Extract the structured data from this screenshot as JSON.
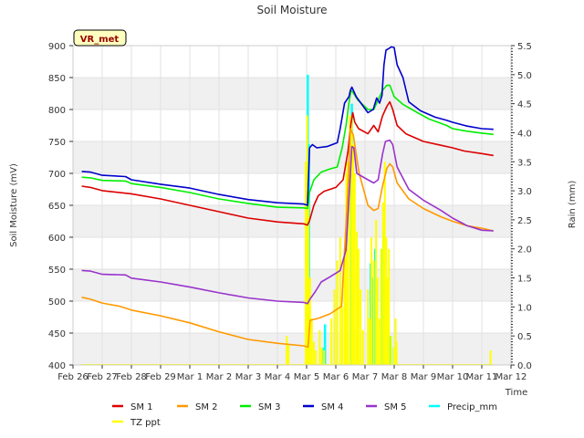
{
  "chart_data": {
    "type": "line",
    "title": "Soil Moisture",
    "xlabel": "Time",
    "ylabel": "Soil Moisture (mV)",
    "y2label": "Rain (mm)",
    "badge": "VR_met",
    "xlim": [
      0,
      15
    ],
    "ylim": [
      400,
      900
    ],
    "y2lim": [
      0.0,
      5.5
    ],
    "x_tick_labels": [
      "Feb 26",
      "Feb 27",
      "Feb 28",
      "Feb 29",
      "Mar 1",
      "Mar 2",
      "Mar 3",
      "Mar 4",
      "Mar 5",
      "Mar 6",
      "Mar 7",
      "Mar 8",
      "Mar 9",
      "Mar 10",
      "Mar 11",
      "Mar 12"
    ],
    "y_ticks": [
      400,
      450,
      500,
      550,
      600,
      650,
      700,
      750,
      800,
      850,
      900
    ],
    "y_tick_labels": [
      "400",
      "450",
      "500",
      "550",
      "600",
      "650",
      "700",
      "750",
      "800",
      "850",
      "900"
    ],
    "y2_ticks": [
      0.0,
      0.5,
      1.0,
      1.5,
      2.0,
      2.5,
      3.0,
      3.5,
      4.0,
      4.5,
      5.0,
      5.5
    ],
    "y2_tick_labels": [
      "0.0",
      "0.5",
      "1.0",
      "1.5",
      "2.0",
      "2.5",
      "3.0",
      "3.5",
      "4.0",
      "4.5",
      "5.0",
      "5.5"
    ],
    "series": [
      {
        "name": "SM 1",
        "color": "#dd0000",
        "axis": "left",
        "points": [
          [
            0.3,
            680
          ],
          [
            0.6,
            678
          ],
          [
            1,
            673
          ],
          [
            2,
            668
          ],
          [
            3,
            660
          ],
          [
            4,
            650
          ],
          [
            5,
            640
          ],
          [
            6,
            630
          ],
          [
            7,
            624
          ],
          [
            7.9,
            621
          ],
          [
            8.03,
            619
          ],
          [
            8.1,
            626
          ],
          [
            8.25,
            650
          ],
          [
            8.4,
            665
          ],
          [
            8.6,
            672
          ],
          [
            9,
            678
          ],
          [
            9.25,
            690
          ],
          [
            9.42,
            735
          ],
          [
            9.52,
            778
          ],
          [
            9.58,
            795
          ],
          [
            9.65,
            780
          ],
          [
            9.78,
            770
          ],
          [
            10.1,
            762
          ],
          [
            10.3,
            775
          ],
          [
            10.45,
            765
          ],
          [
            10.6,
            790
          ],
          [
            10.75,
            805
          ],
          [
            10.85,
            812
          ],
          [
            10.95,
            800
          ],
          [
            11.1,
            775
          ],
          [
            11.4,
            762
          ],
          [
            12,
            750
          ],
          [
            12.6,
            744
          ],
          [
            13,
            740
          ],
          [
            13.4,
            735
          ],
          [
            14,
            731
          ],
          [
            14.4,
            728
          ]
        ]
      },
      {
        "name": "SM 2",
        "color": "#ff9900",
        "axis": "left",
        "points": [
          [
            0.3,
            506
          ],
          [
            0.6,
            503
          ],
          [
            1,
            497
          ],
          [
            1.6,
            492
          ],
          [
            2,
            486
          ],
          [
            3,
            477
          ],
          [
            4,
            466
          ],
          [
            5,
            452
          ],
          [
            6,
            440
          ],
          [
            7,
            434
          ],
          [
            7.9,
            430
          ],
          [
            8.05,
            428
          ],
          [
            8.12,
            470
          ],
          [
            8.4,
            473
          ],
          [
            8.8,
            480
          ],
          [
            9.2,
            492
          ],
          [
            9.42,
            680
          ],
          [
            9.5,
            770
          ],
          [
            9.6,
            760
          ],
          [
            9.8,
            700
          ],
          [
            10.1,
            650
          ],
          [
            10.3,
            642
          ],
          [
            10.45,
            645
          ],
          [
            10.6,
            680
          ],
          [
            10.75,
            708
          ],
          [
            10.85,
            715
          ],
          [
            10.95,
            710
          ],
          [
            11.1,
            685
          ],
          [
            11.5,
            660
          ],
          [
            12,
            645
          ],
          [
            12.6,
            632
          ],
          [
            13,
            625
          ],
          [
            13.5,
            618
          ],
          [
            14,
            614
          ],
          [
            14.4,
            610
          ]
        ]
      },
      {
        "name": "SM 3",
        "color": "#00ee00",
        "axis": "left",
        "points": [
          [
            0.3,
            694
          ],
          [
            0.6,
            693
          ],
          [
            1,
            689
          ],
          [
            1.8,
            688
          ],
          [
            2,
            684
          ],
          [
            3,
            678
          ],
          [
            4,
            670
          ],
          [
            5,
            660
          ],
          [
            6,
            653
          ],
          [
            7,
            647
          ],
          [
            7.9,
            646
          ],
          [
            8.03,
            645
          ],
          [
            8.1,
            670
          ],
          [
            8.25,
            690
          ],
          [
            8.5,
            702
          ],
          [
            8.8,
            707
          ],
          [
            9.05,
            710
          ],
          [
            9.22,
            740
          ],
          [
            9.35,
            775
          ],
          [
            9.45,
            810
          ],
          [
            9.52,
            830
          ],
          [
            9.6,
            826
          ],
          [
            9.75,
            815
          ],
          [
            10.1,
            800
          ],
          [
            10.3,
            800
          ],
          [
            10.45,
            815
          ],
          [
            10.6,
            830
          ],
          [
            10.75,
            838
          ],
          [
            10.85,
            838
          ],
          [
            11,
            820
          ],
          [
            11.3,
            808
          ],
          [
            11.8,
            795
          ],
          [
            12.2,
            785
          ],
          [
            12.8,
            775
          ],
          [
            13,
            770
          ],
          [
            13.5,
            766
          ],
          [
            14,
            763
          ],
          [
            14.4,
            761
          ]
        ]
      },
      {
        "name": "SM 4",
        "color": "#0000cc",
        "axis": "left",
        "points": [
          [
            0.3,
            703
          ],
          [
            0.6,
            702
          ],
          [
            1,
            697
          ],
          [
            1.8,
            695
          ],
          [
            2,
            690
          ],
          [
            3,
            683
          ],
          [
            4,
            677
          ],
          [
            5,
            667
          ],
          [
            6,
            659
          ],
          [
            7,
            654
          ],
          [
            7.9,
            652
          ],
          [
            8.03,
            650
          ],
          [
            8.1,
            740
          ],
          [
            8.2,
            745
          ],
          [
            8.35,
            740
          ],
          [
            8.7,
            742
          ],
          [
            9.05,
            748
          ],
          [
            9.15,
            770
          ],
          [
            9.3,
            810
          ],
          [
            9.45,
            820
          ],
          [
            9.5,
            830
          ],
          [
            9.55,
            835
          ],
          [
            9.7,
            820
          ],
          [
            10.1,
            795
          ],
          [
            10.28,
            800
          ],
          [
            10.4,
            818
          ],
          [
            10.5,
            810
          ],
          [
            10.58,
            822
          ],
          [
            10.65,
            870
          ],
          [
            10.72,
            893
          ],
          [
            10.8,
            895
          ],
          [
            10.9,
            898
          ],
          [
            11.0,
            897
          ],
          [
            11.1,
            870
          ],
          [
            11.3,
            850
          ],
          [
            11.5,
            812
          ],
          [
            11.9,
            798
          ],
          [
            12.4,
            788
          ],
          [
            12.8,
            783
          ],
          [
            13,
            780
          ],
          [
            13.5,
            774
          ],
          [
            14,
            770
          ],
          [
            14.4,
            769
          ]
        ]
      },
      {
        "name": "SM 5",
        "color": "#9933cc",
        "axis": "left",
        "points": [
          [
            0.3,
            548
          ],
          [
            0.6,
            547
          ],
          [
            1,
            542
          ],
          [
            1.8,
            541
          ],
          [
            2,
            536
          ],
          [
            3,
            530
          ],
          [
            4,
            522
          ],
          [
            5,
            513
          ],
          [
            6,
            505
          ],
          [
            7,
            500
          ],
          [
            7.9,
            498
          ],
          [
            8.03,
            496
          ],
          [
            8.1,
            502
          ],
          [
            8.3,
            515
          ],
          [
            8.5,
            530
          ],
          [
            8.8,
            538
          ],
          [
            9.15,
            548
          ],
          [
            9.35,
            580
          ],
          [
            9.45,
            660
          ],
          [
            9.55,
            742
          ],
          [
            9.62,
            740
          ],
          [
            9.72,
            700
          ],
          [
            10.1,
            690
          ],
          [
            10.3,
            685
          ],
          [
            10.45,
            690
          ],
          [
            10.6,
            730
          ],
          [
            10.7,
            750
          ],
          [
            10.85,
            752
          ],
          [
            10.95,
            745
          ],
          [
            11.1,
            710
          ],
          [
            11.5,
            675
          ],
          [
            12,
            658
          ],
          [
            12.6,
            642
          ],
          [
            13,
            630
          ],
          [
            13.5,
            618
          ],
          [
            14,
            611
          ],
          [
            14.4,
            610
          ]
        ]
      },
      {
        "name": "Precip_mm",
        "color": "#00ffff",
        "axis": "right",
        "kind": "bar",
        "bars": [
          [
            8.04,
            5.0
          ],
          [
            8.08,
            3.8
          ],
          [
            8.55,
            0.3
          ],
          [
            8.63,
            0.7
          ],
          [
            9.5,
            3.5
          ],
          [
            9.55,
            4.5
          ],
          [
            9.62,
            3.2
          ],
          [
            10.2,
            1.75
          ],
          [
            10.28,
            1.5
          ],
          [
            10.35,
            2.0
          ],
          [
            10.4,
            0.8
          ],
          [
            10.6,
            2.0
          ],
          [
            10.65,
            2.3
          ],
          [
            10.7,
            1.8
          ],
          [
            10.8,
            1.2
          ],
          [
            10.87,
            0.5
          ],
          [
            11.0,
            0.3
          ]
        ]
      },
      {
        "name": "TZ ppt",
        "color": "#ffff00",
        "axis": "right",
        "kind": "spike",
        "bars": [
          [
            7.32,
            0.5
          ],
          [
            7.38,
            0.35
          ],
          [
            7.97,
            3.5
          ],
          [
            8.02,
            4.3
          ],
          [
            8.06,
            2.8
          ],
          [
            8.12,
            1.5
          ],
          [
            8.18,
            0.8
          ],
          [
            8.25,
            0.4
          ],
          [
            8.32,
            0.25
          ],
          [
            8.45,
            0.6
          ],
          [
            8.52,
            0.3
          ],
          [
            8.6,
            0.25
          ],
          [
            8.85,
            0.8
          ],
          [
            8.95,
            1.3
          ],
          [
            9.05,
            1.8
          ],
          [
            9.15,
            2.2
          ],
          [
            9.22,
            1.0
          ],
          [
            9.3,
            2.0
          ],
          [
            9.36,
            3.3
          ],
          [
            9.4,
            3.5
          ],
          [
            9.48,
            4.3
          ],
          [
            9.55,
            4.3
          ],
          [
            9.6,
            3.8
          ],
          [
            9.65,
            3.3
          ],
          [
            9.72,
            2.3
          ],
          [
            9.78,
            2.0
          ],
          [
            9.85,
            1.3
          ],
          [
            9.93,
            0.6
          ],
          [
            10.1,
            1.3
          ],
          [
            10.15,
            0.8
          ],
          [
            10.22,
            2.2
          ],
          [
            10.3,
            1.8
          ],
          [
            10.38,
            2.5
          ],
          [
            10.43,
            1.5
          ],
          [
            10.5,
            0.8
          ],
          [
            10.55,
            2.0
          ],
          [
            10.62,
            2.8
          ],
          [
            10.68,
            3.5
          ],
          [
            10.73,
            2.2
          ],
          [
            10.78,
            1.5
          ],
          [
            10.82,
            2.0
          ],
          [
            10.9,
            0.5
          ],
          [
            11.0,
            0.3
          ],
          [
            11.05,
            0.8
          ],
          [
            11.08,
            0.4
          ],
          [
            14.3,
            0.25
          ]
        ]
      }
    ]
  }
}
